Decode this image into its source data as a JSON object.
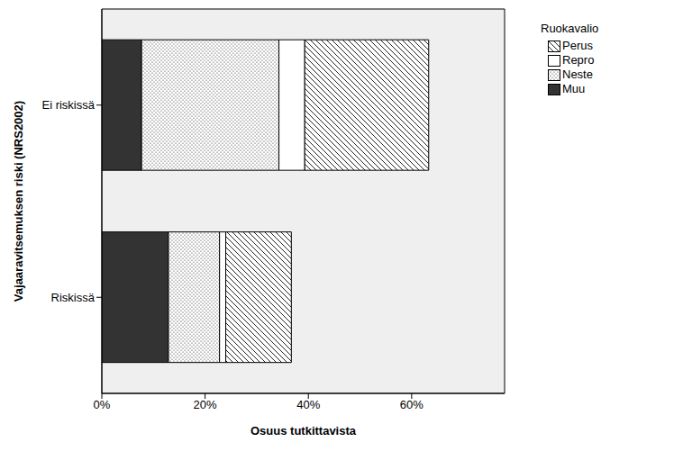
{
  "chart_data": {
    "type": "bar",
    "orientation": "horizontal",
    "stacked": true,
    "x_label": "Osuus tutkittavista",
    "y_label": "Vajaaravitsemuksen riski (NRS2002)",
    "categories": [
      "Ei riskissä",
      "Riskissä"
    ],
    "series": [
      {
        "name": "Muu",
        "color": "#333333",
        "values": [
          7.7,
          12.9
        ]
      },
      {
        "name": "Neste",
        "color": "#222222",
        "values": [
          26.6,
          9.9
        ]
      },
      {
        "name": "Repro",
        "color": "#ffffff",
        "values": [
          5.0,
          1.2
        ]
      },
      {
        "name": "Perus",
        "color": "#222222",
        "values": [
          24.0,
          12.7
        ]
      }
    ],
    "xlim": [
      0,
      78
    ],
    "xticks": [
      {
        "value": 0,
        "label": "0%"
      },
      {
        "value": 20,
        "label": "20%"
      },
      {
        "value": 40,
        "label": "40%"
      },
      {
        "value": 60,
        "label": "60%"
      }
    ],
    "grid": false,
    "legend": "top-right",
    "legend_title": "Ruokavalio"
  }
}
